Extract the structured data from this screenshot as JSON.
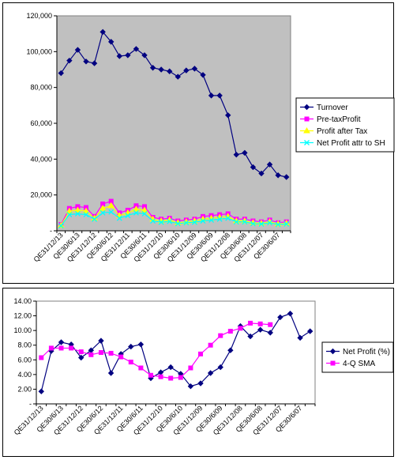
{
  "chart_data": [
    {
      "type": "line",
      "title": "",
      "xlabel": "",
      "ylabel": "",
      "ylim": [
        0,
        120000
      ],
      "yticks": [
        "-",
        "20,000",
        "40,000",
        "60,000",
        "80,000",
        "100,000",
        "120,000"
      ],
      "xtick_labels": [
        "QE31/12/13",
        "QE30/6/13",
        "QE31/12/12",
        "QE30/6/12",
        "QE31/12/11",
        "QE30/6/11",
        "QE31/12/10",
        "QE30/6/10",
        "QE31/12/09",
        "QE30/6/09",
        "QE31/12/08",
        "QE30/6/08",
        "QE31/12/07",
        "QE30/6/07"
      ],
      "legend_position": "right",
      "plot_area_color": "#c0c0c0",
      "series": [
        {
          "name": "Turnover",
          "color": "#000080",
          "marker": "diamond",
          "values": [
            88000,
            95000,
            101000,
            94500,
            93500,
            111000,
            105500,
            97500,
            98000,
            101500,
            98000,
            91000,
            90000,
            89000,
            86000,
            89500,
            90500,
            87000,
            75500,
            75500,
            64500,
            42500,
            43500,
            35500,
            32000,
            37000,
            31000,
            30000
          ]
        },
        {
          "name": "Pre-taxProfit",
          "color": "#ff00ff",
          "marker": "square",
          "values": [
            3500,
            12500,
            13500,
            13000,
            8000,
            15000,
            16500,
            10000,
            11500,
            14000,
            13500,
            7500,
            6500,
            7000,
            5500,
            6000,
            6500,
            8000,
            8500,
            9000,
            9500,
            6500,
            6500,
            5500,
            5000,
            6000,
            4500,
            5000
          ]
        },
        {
          "name": "Profit after Tax",
          "color": "#ffff00",
          "marker": "triangle",
          "values": [
            3000,
            11000,
            11500,
            11000,
            7000,
            12500,
            14000,
            8500,
            10000,
            12000,
            11500,
            6500,
            5500,
            6000,
            4500,
            5000,
            5500,
            6500,
            7000,
            7500,
            8000,
            5500,
            5500,
            4500,
            4200,
            5000,
            3800,
            4200
          ]
        },
        {
          "name": "Net Profit attr to SH",
          "color": "#00ffff",
          "marker": "x",
          "values": [
            2800,
            9000,
            9500,
            9000,
            6500,
            10000,
            10500,
            7000,
            8500,
            10000,
            9500,
            5500,
            4800,
            5200,
            4000,
            4500,
            4800,
            5500,
            6000,
            6500,
            7000,
            5000,
            5000,
            4000,
            3800,
            4500,
            3500,
            3800
          ]
        }
      ]
    },
    {
      "type": "line",
      "title": "",
      "xlabel": "",
      "ylabel": "",
      "ylim": [
        0,
        14
      ],
      "yticks": [
        "-",
        "2.00",
        "4.00",
        "6.00",
        "8.00",
        "10.00",
        "12.00",
        "14.00"
      ],
      "xtick_labels": [
        "QE31/12/13",
        "QE30/6/13",
        "QE31/12/12",
        "QE30/6/12",
        "QE31/12/11",
        "QE30/6/11",
        "QE31/12/10",
        "QE30/6/10",
        "QE31/12/09",
        "QE30/6/09",
        "QE31/12/08",
        "QE30/6/08",
        "QE31/12/07",
        "QE30/6/07"
      ],
      "legend_position": "right",
      "plot_area_color": "#ffffff",
      "series": [
        {
          "name": "Net Profit (%)",
          "color": "#000080",
          "marker": "diamond",
          "values": [
            1.7,
            7.2,
            8.4,
            8.1,
            6.3,
            7.3,
            8.6,
            4.2,
            6.8,
            7.8,
            8.1,
            3.5,
            4.3,
            5.0,
            4.1,
            2.4,
            2.8,
            4.2,
            5.0,
            7.3,
            10.6,
            9.2,
            10.1,
            9.7,
            11.8,
            12.3,
            9.0,
            9.9
          ]
        },
        {
          "name": "4-Q  SMA",
          "color": "#ff00ff",
          "marker": "square",
          "values": [
            6.3,
            7.6,
            7.6,
            7.6,
            7.1,
            6.7,
            7.0,
            6.9,
            6.4,
            5.7,
            4.9,
            3.9,
            3.7,
            3.5,
            3.6,
            4.9,
            6.8,
            8.0,
            9.3,
            9.9,
            10.3,
            11.0,
            10.9,
            10.8
          ]
        }
      ]
    }
  ]
}
